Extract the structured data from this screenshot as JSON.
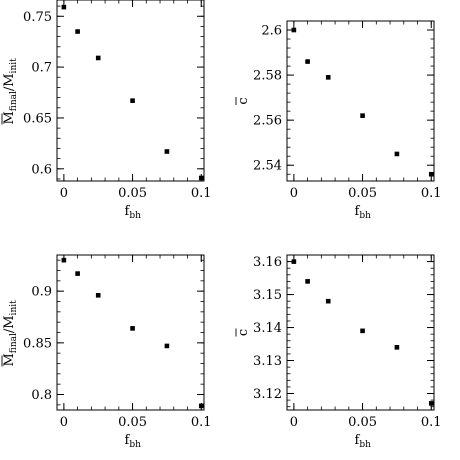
{
  "chart_data": [
    {
      "type": "scatter",
      "xlabel": {
        "main": "f",
        "sub": "bh"
      },
      "ylabel": {
        "main": "M",
        "sub": "final",
        "rest": "/M",
        "sub2": "init",
        "overline": true
      },
      "xlim": [
        -0.005,
        0.102
      ],
      "ylim": [
        0.588,
        0.766
      ],
      "xticks": [
        0,
        0.05,
        0.1
      ],
      "xtick_labels": [
        "0",
        "0.05",
        "0.1"
      ],
      "yticks": [
        0.6,
        0.65,
        0.7,
        0.75
      ],
      "ytick_labels": [
        "0.6",
        "0.65",
        "0.7",
        "0.75"
      ],
      "points": [
        {
          "x": 0,
          "y": 0.759
        },
        {
          "x": 0.01,
          "y": 0.735
        },
        {
          "x": 0.025,
          "y": 0.709
        },
        {
          "x": 0.05,
          "y": 0.667
        },
        {
          "x": 0.075,
          "y": 0.617
        },
        {
          "x": 0.1,
          "y": 0.591
        }
      ],
      "grid": false
    },
    {
      "type": "scatter",
      "xlabel": {
        "main": "f",
        "sub": "bh"
      },
      "ylabel": {
        "main": "c",
        "overline": true
      },
      "xlim": [
        -0.005,
        0.102
      ],
      "ylim": [
        2.533,
        2.604
      ],
      "xticks": [
        0,
        0.05,
        0.1
      ],
      "xtick_labels": [
        "0",
        "0.05",
        "0.1"
      ],
      "yticks": [
        2.54,
        2.56,
        2.58,
        2.6
      ],
      "ytick_labels": [
        "2.54",
        "2.56",
        "2.58",
        "2.6"
      ],
      "points": [
        {
          "x": 0,
          "y": 2.6
        },
        {
          "x": 0.01,
          "y": 2.586
        },
        {
          "x": 0.025,
          "y": 2.579
        },
        {
          "x": 0.05,
          "y": 2.562
        },
        {
          "x": 0.075,
          "y": 2.545
        },
        {
          "x": 0.1,
          "y": 2.536
        }
      ],
      "grid": false
    },
    {
      "type": "scatter",
      "xlabel": {
        "main": "f",
        "sub": "bh"
      },
      "ylabel": {
        "main": "M",
        "sub": "final",
        "rest": "/M",
        "sub2": "init",
        "overline": true
      },
      "xlim": [
        -0.005,
        0.102
      ],
      "ylim": [
        0.785,
        0.935
      ],
      "xticks": [
        0,
        0.05,
        0.1
      ],
      "xtick_labels": [
        "0",
        "0.05",
        "0.1"
      ],
      "yticks": [
        0.8,
        0.85,
        0.9
      ],
      "ytick_labels": [
        "0.8",
        "0.85",
        "0.9"
      ],
      "points": [
        {
          "x": 0,
          "y": 0.93
        },
        {
          "x": 0.01,
          "y": 0.917
        },
        {
          "x": 0.025,
          "y": 0.896
        },
        {
          "x": 0.05,
          "y": 0.864
        },
        {
          "x": 0.075,
          "y": 0.847
        },
        {
          "x": 0.1,
          "y": 0.789
        }
      ],
      "grid": false
    },
    {
      "type": "scatter",
      "xlabel": {
        "main": "f",
        "sub": "bh"
      },
      "ylabel": {
        "main": "c",
        "overline": true
      },
      "xlim": [
        -0.005,
        0.102
      ],
      "ylim": [
        3.115,
        3.162
      ],
      "xticks": [
        0,
        0.05,
        0.1
      ],
      "xtick_labels": [
        "0",
        "0.05",
        "0.1"
      ],
      "yticks": [
        3.12,
        3.13,
        3.14,
        3.15,
        3.16
      ],
      "ytick_labels": [
        "3.12",
        "3.13",
        "3.14",
        "3.15",
        "3.16"
      ],
      "points": [
        {
          "x": 0,
          "y": 3.16
        },
        {
          "x": 0.01,
          "y": 3.154
        },
        {
          "x": 0.025,
          "y": 3.148
        },
        {
          "x": 0.05,
          "y": 3.139
        },
        {
          "x": 0.075,
          "y": 3.134
        },
        {
          "x": 0.1,
          "y": 3.117
        }
      ],
      "grid": false
    }
  ]
}
